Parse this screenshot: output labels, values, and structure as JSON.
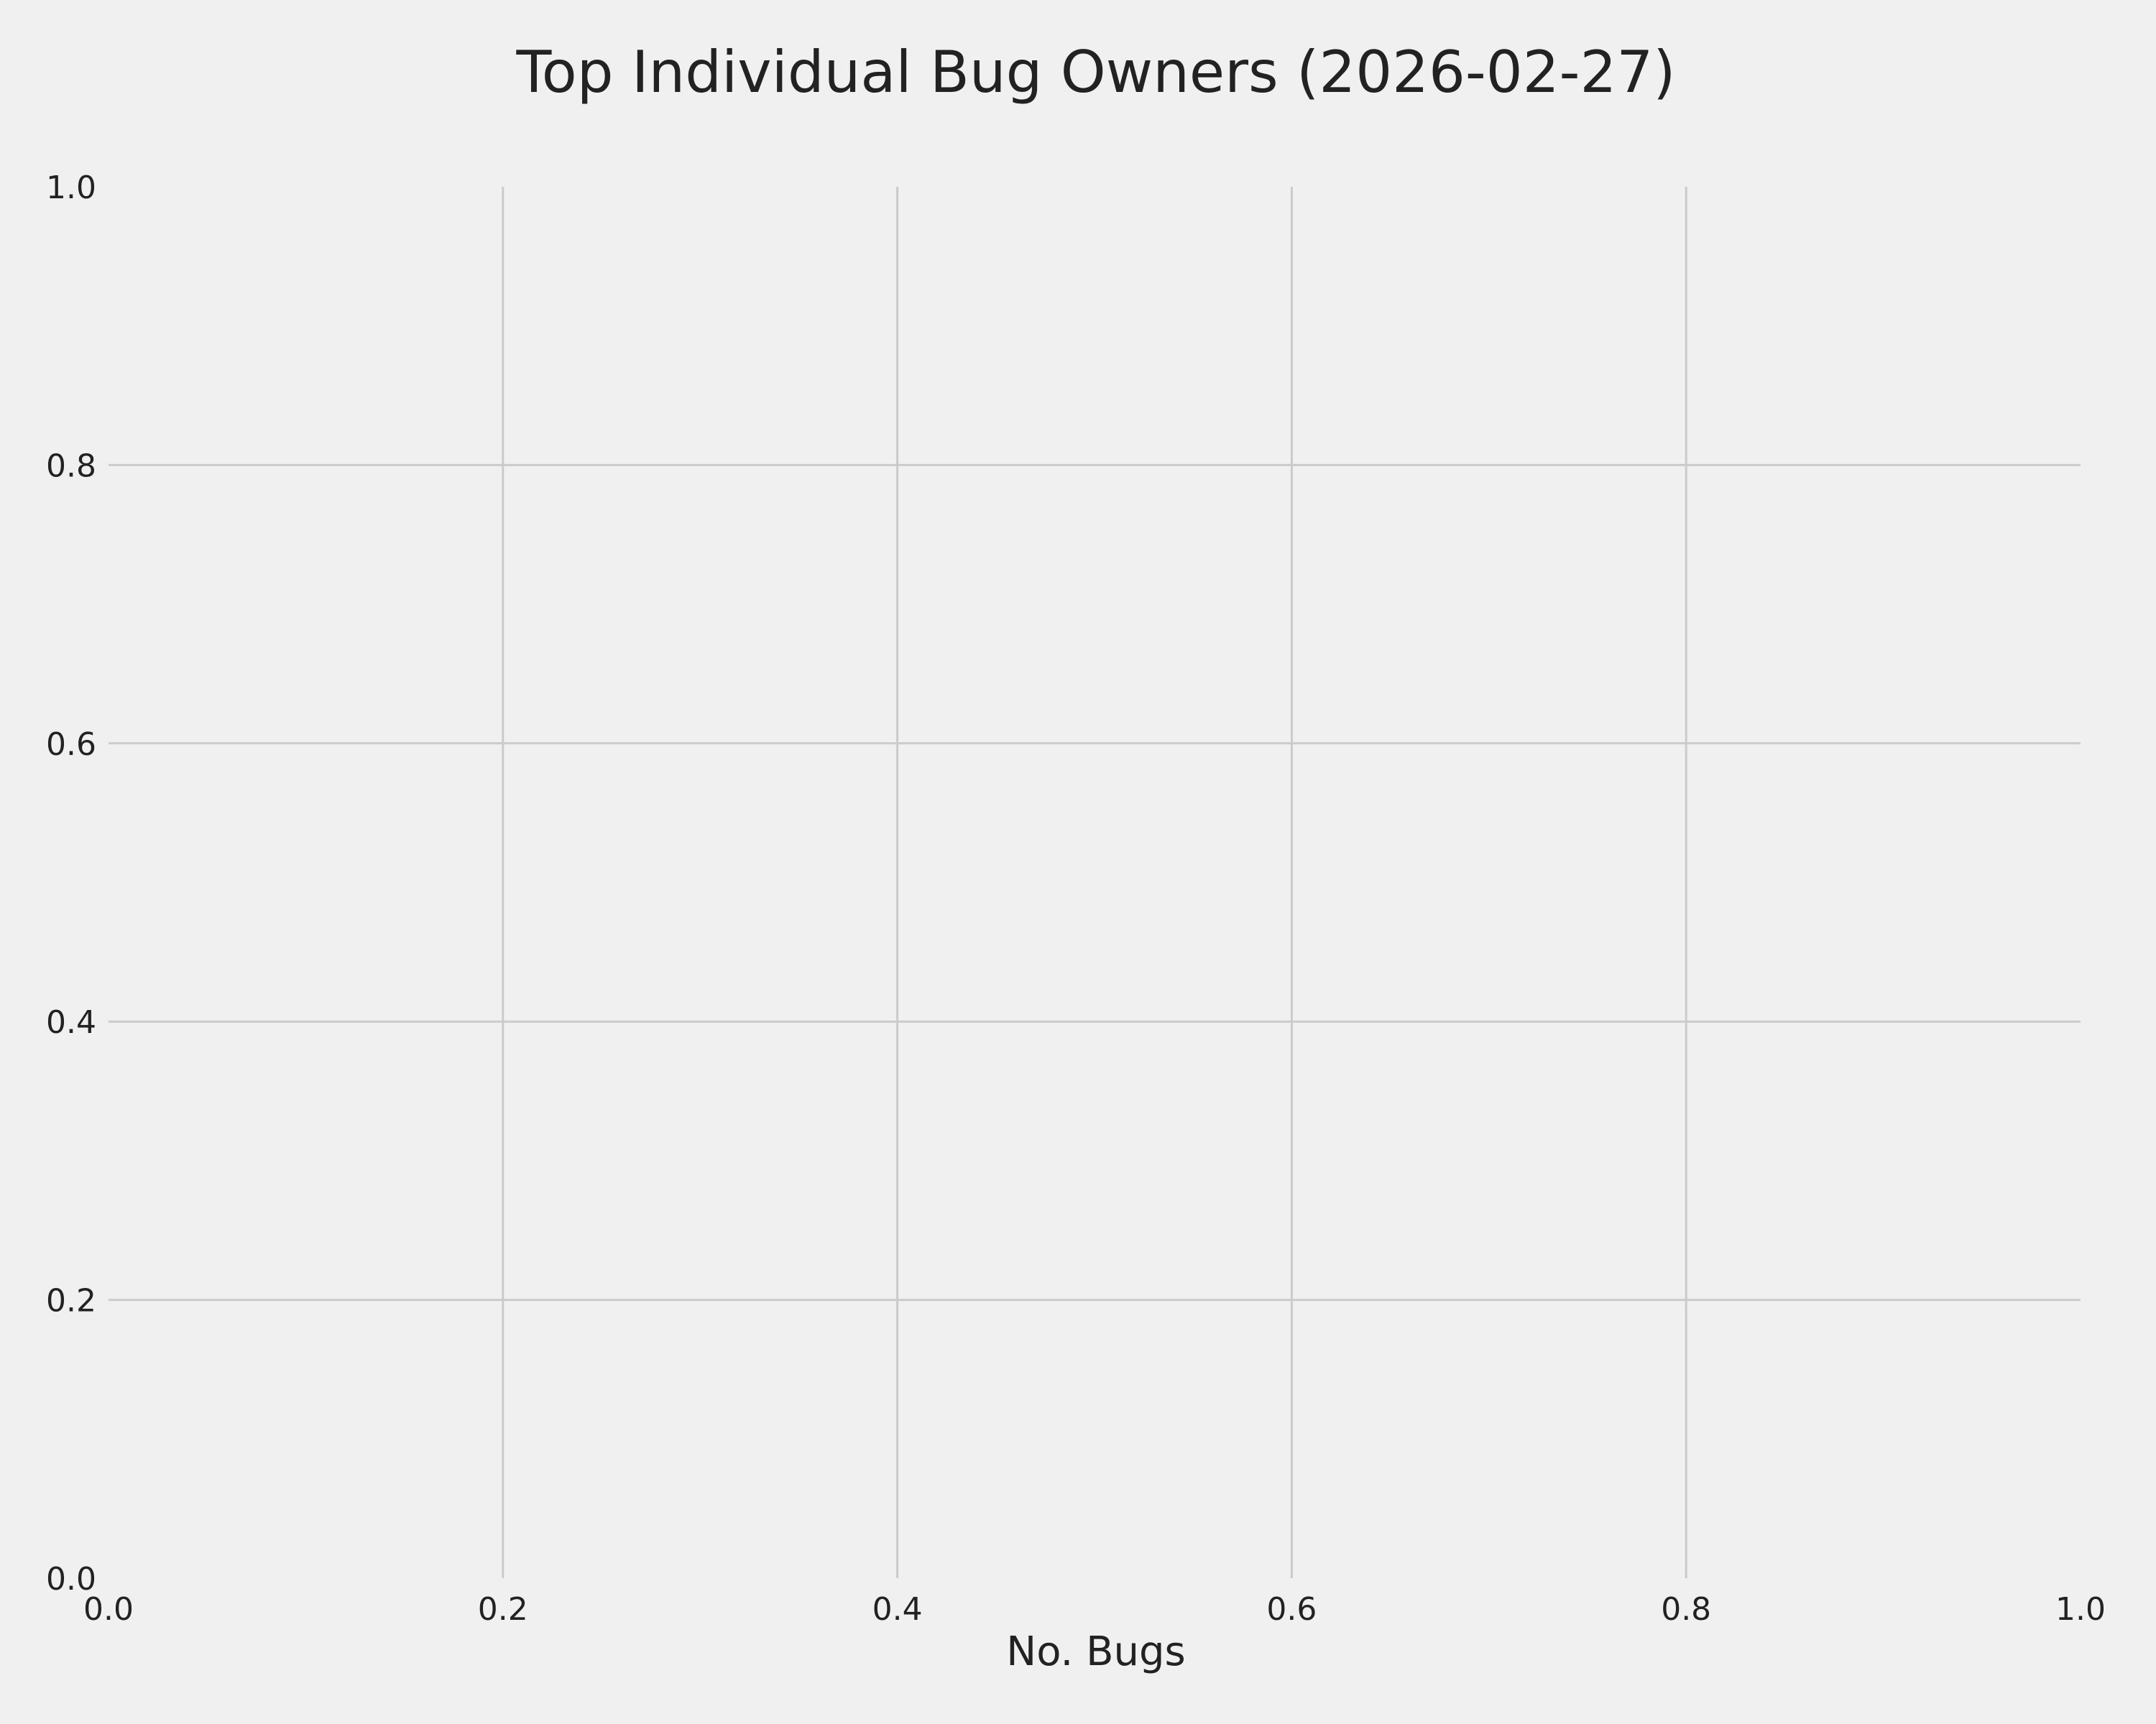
{
  "chart_data": {
    "type": "bar",
    "title": "Top Individual Bug Owners (2026-02-27)",
    "xlabel": "No. Bugs",
    "ylabel": "",
    "categories": [],
    "values": [],
    "xlim": [
      0.0,
      1.0
    ],
    "ylim": [
      0.0,
      1.0
    ],
    "xticks": [
      "0.0",
      "0.2",
      "0.4",
      "0.6",
      "0.8",
      "1.0"
    ],
    "yticks": [
      "0.0",
      "0.2",
      "0.4",
      "0.6",
      "0.8",
      "1.0"
    ],
    "grid": true,
    "colors": {
      "background": "#f0f0f0",
      "grid": "#cbcbcb",
      "text": "#222222"
    }
  }
}
